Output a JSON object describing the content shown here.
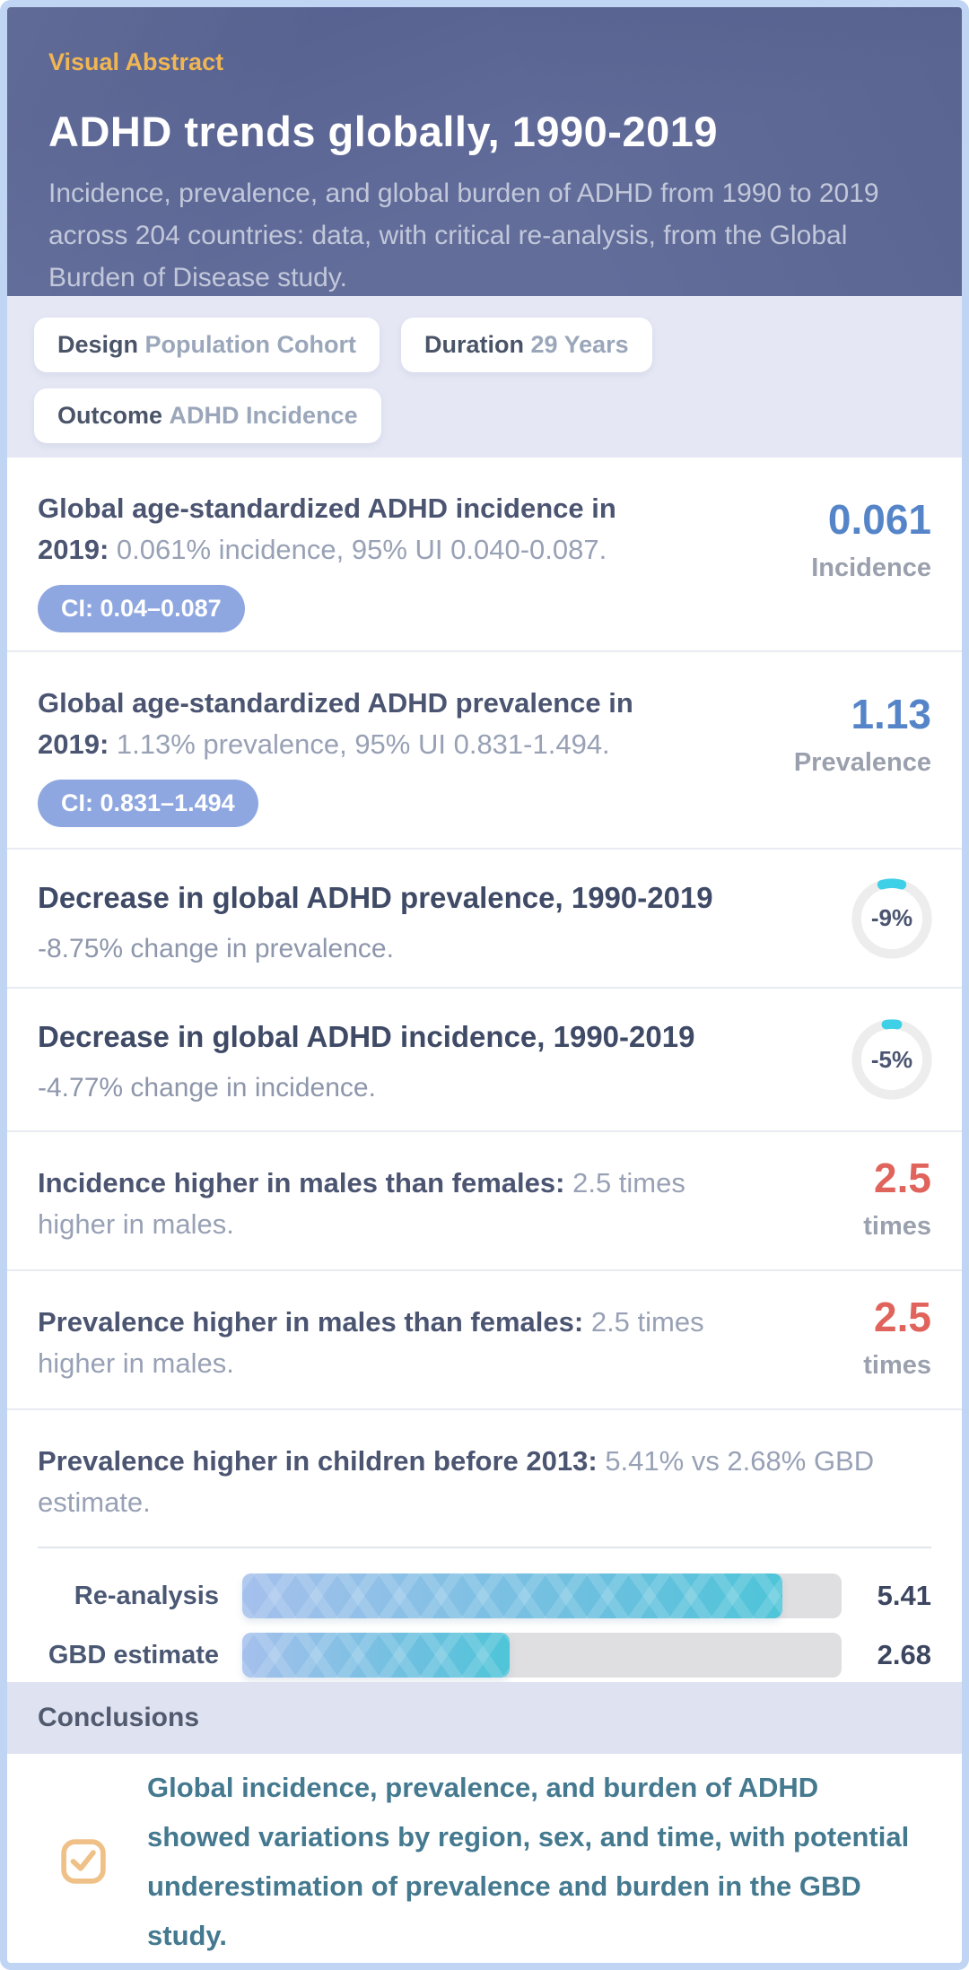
{
  "header": {
    "badge": "Visual Abstract",
    "title": "ADHD trends globally, 1990-2019",
    "subtitle": "Incidence, prevalence, and global burden of ADHD from 1990 to 2019 across 204 countries: data, with critical re-analysis, from the Global Burden of Disease study."
  },
  "meta_badges": {
    "design": {
      "label": "Design",
      "value": "Population Cohort"
    },
    "duration": {
      "label": "Duration",
      "value": "29 Years"
    },
    "outcome": {
      "label": "Outcome",
      "value": "ADHD Incidence"
    }
  },
  "findings": {
    "incidence": {
      "title": "Global age-standardized ADHD incidence in 2019:",
      "description": "0.061% incidence, 95% UI 0.040-0.087.",
      "ci_badge": "CI: 0.04–0.087",
      "stat_value": "0.061",
      "stat_label": "Incidence"
    },
    "prevalence": {
      "title": "Global age-standardized ADHD prevalence in 2019:",
      "description": "1.13% prevalence, 95% UI 0.831-1.494.",
      "ci_badge": "CI: 0.831–1.494",
      "stat_value": "1.13",
      "stat_label": "Prevalence"
    },
    "prevalence_change": {
      "title": "Decrease in global ADHD prevalence, 1990-2019",
      "description": "-8.75% change in prevalence.",
      "donut_label": "-9%",
      "donut_percent": 9
    },
    "incidence_change": {
      "title": "Decrease in global ADHD incidence, 1990-2019",
      "description": "-4.77% change in incidence.",
      "donut_label": "-5%",
      "donut_percent": 5
    },
    "incidence_sex": {
      "title": "Incidence higher in males than females:",
      "description": "2.5 times higher in males.",
      "stat_value": "2.5",
      "stat_label": "times"
    },
    "prevalence_sex": {
      "title": "Prevalence higher in males than females:",
      "description": "2.5 times higher in males.",
      "stat_value": "2.5",
      "stat_label": "times"
    },
    "children_prevalence": {
      "title": "Prevalence higher in children before 2013:",
      "description": "5.41% vs 2.68% GBD estimate."
    }
  },
  "chart_data": {
    "type": "bar",
    "orientation": "horizontal",
    "categories": [
      "Re-analysis",
      "GBD estimate"
    ],
    "values": [
      5.41,
      2.68
    ],
    "value_labels": [
      "5.41",
      "2.68"
    ],
    "title": "Prevalence higher in children before 2013: 5.41% vs 2.68% GBD estimate.",
    "xlabel": "",
    "ylabel": "",
    "xlim": [
      0,
      6
    ],
    "grid": false,
    "legend": false,
    "bar_style": "gradient chevron, light periwinkle to teal, gray track"
  },
  "conclusions": {
    "heading": "Conclusions",
    "text": "Global incidence, prevalence, and burden of ADHD showed variations by region, sex, and time, with potential underestimation of prevalence and burden in the GBD study."
  },
  "colors": {
    "header_bg": "#5d6897",
    "highlight_orange": "#f0b653",
    "badge_band_bg": "#e5e7f4",
    "ci_badge_bg": "#8fa7e0",
    "stat_blue": "#5585c8",
    "stat_red": "#e0635c",
    "donut_arc_cyan": "#3ed0e6",
    "bar_gradient_start": "#a5c0ec",
    "bar_gradient_end": "#4ec5d8",
    "conclusion_teal": "#44798f",
    "outer_border": "#bfd5f3"
  }
}
